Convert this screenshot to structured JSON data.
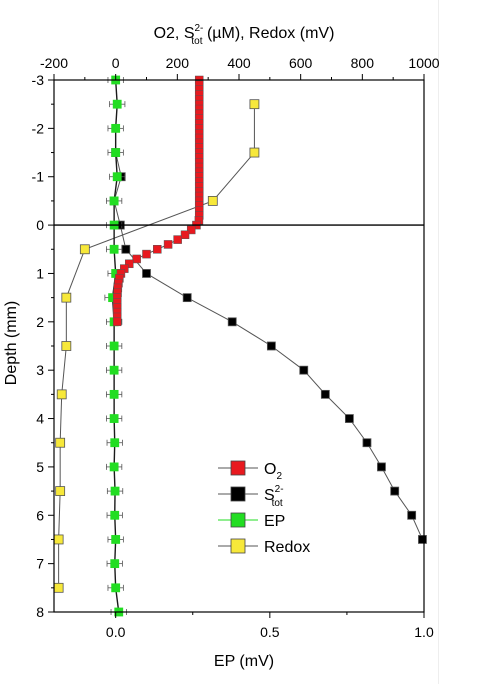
{
  "chart_data": {
    "type": "scatter",
    "top_axis": {
      "label": "O2, S2-tot (µM), Redox (mV)",
      "label_parts": {
        "a": "O2, S",
        "sup": "2-",
        "sub": "tot",
        "b": " (µM), Redox (mV)"
      },
      "range": [
        -200,
        1000
      ],
      "ticks": [
        "-200",
        "0",
        "200",
        "400",
        "600",
        "800",
        "1000"
      ]
    },
    "bottom_axis": {
      "label": "EP (mV)",
      "range": [
        -0.2,
        1.0
      ],
      "ticks": [
        "0.0",
        "0.5",
        "1.0"
      ]
    },
    "y_axis": {
      "label": "Depth (mm)",
      "range": [
        -3,
        8
      ],
      "inverted": true,
      "ticks": [
        "-3",
        "-2",
        "-1",
        "0",
        "1",
        "2",
        "3",
        "4",
        "5",
        "6",
        "7",
        "8"
      ]
    },
    "reference_line_depth": 0,
    "legend": {
      "placement": "bottom-right",
      "entries": [
        {
          "key": "o2",
          "main": "O",
          "sub": "2"
        },
        {
          "key": "s2",
          "main": "S",
          "sup": "2-",
          "sub": "tot"
        },
        {
          "key": "ep",
          "main": "EP"
        },
        {
          "key": "redox",
          "main": "Redox"
        }
      ]
    },
    "series": [
      {
        "key": "o2",
        "name": "O2",
        "axis": "top",
        "color": "#e8191f",
        "points": [
          [
            271,
            -3.0
          ],
          [
            271,
            -2.9
          ],
          [
            271,
            -2.8
          ],
          [
            271,
            -2.7
          ],
          [
            271,
            -2.6
          ],
          [
            271,
            -2.5
          ],
          [
            271,
            -2.4
          ],
          [
            271,
            -2.3
          ],
          [
            271,
            -2.2
          ],
          [
            271,
            -2.1
          ],
          [
            271,
            -2.0
          ],
          [
            271,
            -1.9
          ],
          [
            271,
            -1.8
          ],
          [
            271,
            -1.7
          ],
          [
            271,
            -1.6
          ],
          [
            271,
            -1.5
          ],
          [
            271,
            -1.4
          ],
          [
            271,
            -1.3
          ],
          [
            271,
            -1.2
          ],
          [
            271,
            -1.1
          ],
          [
            271,
            -1.0
          ],
          [
            271,
            -0.9
          ],
          [
            271,
            -0.8
          ],
          [
            271,
            -0.7
          ],
          [
            271,
            -0.6
          ],
          [
            271,
            -0.5
          ],
          [
            271,
            -0.4
          ],
          [
            271,
            -0.3
          ],
          [
            271,
            -0.2
          ],
          [
            270,
            -0.1
          ],
          [
            262,
            0.0
          ],
          [
            245,
            0.1
          ],
          [
            225,
            0.2
          ],
          [
            201,
            0.3
          ],
          [
            170,
            0.4
          ],
          [
            135,
            0.5
          ],
          [
            100,
            0.6
          ],
          [
            68,
            0.7
          ],
          [
            44,
            0.8
          ],
          [
            28,
            0.9
          ],
          [
            17,
            1.0
          ],
          [
            12,
            1.1
          ],
          [
            9,
            1.2
          ],
          [
            7,
            1.3
          ],
          [
            6,
            1.4
          ],
          [
            5,
            1.5
          ],
          [
            5,
            1.6
          ],
          [
            5,
            1.7
          ],
          [
            5,
            1.8
          ],
          [
            5,
            1.9
          ],
          [
            5,
            2.0
          ]
        ]
      },
      {
        "key": "s2",
        "name": "S2-tot",
        "axis": "top",
        "color": "#000000",
        "points": [
          [
            0,
            -1.5
          ],
          [
            18,
            -1.0
          ],
          [
            -5,
            -0.5
          ],
          [
            15,
            0.0
          ],
          [
            33,
            0.5
          ],
          [
            100,
            1.0
          ],
          [
            232,
            1.5
          ],
          [
            378,
            2.0
          ],
          [
            505,
            2.5
          ],
          [
            610,
            3.0
          ],
          [
            680,
            3.5
          ],
          [
            758,
            4.0
          ],
          [
            815,
            4.5
          ],
          [
            862,
            5.0
          ],
          [
            905,
            5.5
          ],
          [
            960,
            6.0
          ],
          [
            995,
            6.5
          ]
        ]
      },
      {
        "key": "ep",
        "name": "EP",
        "axis": "bottom",
        "color": "#22dd22",
        "points": [
          [
            0.0,
            -3.0
          ],
          [
            0.005,
            -2.5
          ],
          [
            0.0,
            -2.0
          ],
          [
            0.0,
            -1.5
          ],
          [
            0.005,
            -1.0
          ],
          [
            -0.005,
            -0.5
          ],
          [
            -0.005,
            0.0
          ],
          [
            -0.005,
            0.5
          ],
          [
            0.0,
            1.0
          ],
          [
            -0.01,
            1.5
          ],
          [
            -0.005,
            2.0
          ],
          [
            -0.005,
            2.5
          ],
          [
            -0.005,
            3.0
          ],
          [
            -0.005,
            3.5
          ],
          [
            -0.005,
            4.0
          ],
          [
            -0.003,
            4.5
          ],
          [
            -0.005,
            5.0
          ],
          [
            -0.002,
            5.5
          ],
          [
            -0.003,
            6.0
          ],
          [
            0.0,
            6.5
          ],
          [
            -0.003,
            7.0
          ],
          [
            0.0,
            7.5
          ],
          [
            0.01,
            8.0
          ]
        ],
        "error": 0.025
      },
      {
        "key": "redox",
        "name": "Redox",
        "axis": "top",
        "color": "#f7e83a",
        "points": [
          [
            450,
            -2.5
          ],
          [
            450,
            -1.5
          ],
          [
            315,
            -0.5
          ],
          [
            -100,
            0.5
          ],
          [
            -160,
            1.5
          ],
          [
            -160,
            2.5
          ],
          [
            -175,
            3.5
          ],
          [
            -180,
            4.5
          ],
          [
            -180,
            5.5
          ],
          [
            -185,
            6.5
          ],
          [
            -185,
            7.5
          ]
        ]
      }
    ]
  }
}
